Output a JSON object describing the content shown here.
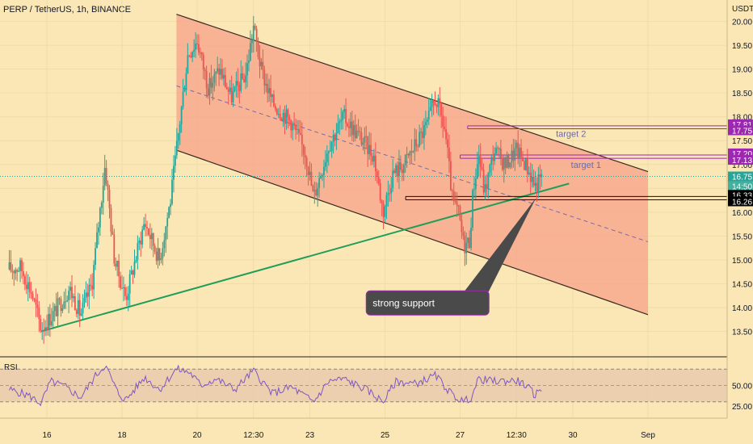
{
  "header": {
    "title": "PERP / TetherUS, 1h, BINANCE"
  },
  "chart_data": {
    "type": "candlestick",
    "symbol": "PERP / TetherUS",
    "interval": "1h",
    "exchange": "BINANCE",
    "currency_label": "USDT",
    "ylim": [
      13.0,
      20.45
    ],
    "y_ticks": [
      13.5,
      14.0,
      14.5,
      15.0,
      15.5,
      16.0,
      16.5,
      17.0,
      17.5,
      18.0,
      18.5,
      19.0,
      19.5,
      20.0
    ],
    "y_tick_labels": [
      "13.50",
      "14.00",
      "14.50",
      "15.00",
      "15.50",
      "16.00",
      "16.50",
      "17.00",
      "17.50",
      "18.00",
      "18.50",
      "19.00",
      "19.50",
      "20.00"
    ],
    "x_ticks": [
      {
        "label": "16",
        "t": 1.0
      },
      {
        "label": "18",
        "t": 3.0
      },
      {
        "label": "20",
        "t": 5.0
      },
      {
        "label": "12:30",
        "t": 6.5
      },
      {
        "label": "23",
        "t": 8.0
      },
      {
        "label": "25",
        "t": 10.0
      },
      {
        "label": "27",
        "t": 12.0
      },
      {
        "label": "12:30",
        "t": 13.5
      },
      {
        "label": "30",
        "t": 15.0
      },
      {
        "label": "Sep",
        "t": 17.0
      }
    ],
    "series": [
      {
        "name": "PERP/USDT",
        "key_points": [
          {
            "t": 0.0,
            "v": 14.8
          },
          {
            "t": 0.3,
            "v": 14.85
          },
          {
            "t": 0.6,
            "v": 14.3
          },
          {
            "t": 0.85,
            "v": 13.55
          },
          {
            "t": 1.2,
            "v": 13.9
          },
          {
            "t": 1.6,
            "v": 14.4
          },
          {
            "t": 1.9,
            "v": 13.85
          },
          {
            "t": 2.2,
            "v": 14.5
          },
          {
            "t": 2.55,
            "v": 17.0
          },
          {
            "t": 2.8,
            "v": 15.0
          },
          {
            "t": 3.1,
            "v": 14.2
          },
          {
            "t": 3.6,
            "v": 15.8
          },
          {
            "t": 4.0,
            "v": 15.0
          },
          {
            "t": 4.3,
            "v": 16.3
          },
          {
            "t": 4.45,
            "v": 17.3
          },
          {
            "t": 4.75,
            "v": 19.3
          },
          {
            "t": 5.0,
            "v": 19.6
          },
          {
            "t": 5.3,
            "v": 18.6
          },
          {
            "t": 5.6,
            "v": 19.0
          },
          {
            "t": 5.9,
            "v": 18.4
          },
          {
            "t": 6.3,
            "v": 18.9
          },
          {
            "t": 6.5,
            "v": 19.9
          },
          {
            "t": 6.7,
            "v": 19.0
          },
          {
            "t": 7.0,
            "v": 18.3
          },
          {
            "t": 7.5,
            "v": 17.9
          },
          {
            "t": 7.9,
            "v": 17.2
          },
          {
            "t": 8.1,
            "v": 16.3
          },
          {
            "t": 8.5,
            "v": 17.4
          },
          {
            "t": 8.9,
            "v": 18.0
          },
          {
            "t": 9.3,
            "v": 17.6
          },
          {
            "t": 9.7,
            "v": 17.2
          },
          {
            "t": 9.95,
            "v": 16.0
          },
          {
            "t": 10.2,
            "v": 16.8
          },
          {
            "t": 10.5,
            "v": 17.0
          },
          {
            "t": 10.8,
            "v": 17.4
          },
          {
            "t": 11.1,
            "v": 17.8
          },
          {
            "t": 11.35,
            "v": 18.4
          },
          {
            "t": 11.6,
            "v": 17.7
          },
          {
            "t": 11.8,
            "v": 16.2
          },
          {
            "t": 11.95,
            "v": 16.0
          },
          {
            "t": 12.1,
            "v": 15.3
          },
          {
            "t": 12.25,
            "v": 15.4
          },
          {
            "t": 12.35,
            "v": 16.5
          },
          {
            "t": 12.5,
            "v": 17.2
          },
          {
            "t": 12.65,
            "v": 16.4
          },
          {
            "t": 12.9,
            "v": 17.3
          },
          {
            "t": 13.2,
            "v": 17.0
          },
          {
            "t": 13.5,
            "v": 17.3
          },
          {
            "t": 13.75,
            "v": 17.0
          },
          {
            "t": 14.0,
            "v": 16.55
          },
          {
            "t": 14.2,
            "v": 16.75
          }
        ]
      }
    ],
    "last_price": 16.75,
    "countdown": "14:50",
    "price_labels": [
      {
        "text": "17.81",
        "value": 17.81,
        "color": "#9c27b0"
      },
      {
        "text": "17.75",
        "value": 17.75,
        "color": "#9c27b0"
      },
      {
        "text": "17.20",
        "value": 17.2,
        "color": "#9c27b0"
      },
      {
        "text": "17.13",
        "value": 17.13,
        "color": "#9c27b0"
      },
      {
        "text": "16.75",
        "value": 16.75,
        "color": "#26a69a"
      },
      {
        "text": "16.33",
        "value": 16.33,
        "color": "#000000"
      },
      {
        "text": "16.26",
        "value": 16.26,
        "color": "#000000"
      }
    ],
    "channel": {
      "upper": [
        {
          "t": 4.45,
          "v": 20.15
        },
        {
          "t": 17.0,
          "v": 16.85
        }
      ],
      "lower": [
        {
          "t": 4.45,
          "v": 17.3
        },
        {
          "t": 17.0,
          "v": 13.85
        }
      ],
      "mid": [
        {
          "t": 4.45,
          "v": 18.65
        },
        {
          "t": 17.0,
          "v": 15.38
        }
      ]
    },
    "trendline": [
      {
        "t": 0.85,
        "v": 13.5
      },
      {
        "t": 14.9,
        "v": 16.6
      }
    ],
    "levels": [
      {
        "name": "target 2",
        "label": "target 2",
        "from_t": 12.2,
        "value": 17.75,
        "value2": 17.81
      },
      {
        "name": "target 1",
        "label": "target 1",
        "from_t": 12.0,
        "value": 17.13,
        "value2": 17.2
      },
      {
        "name": "support",
        "label": "",
        "from_t": 10.55,
        "value": 16.33,
        "value2": 16.26
      }
    ],
    "annotation": {
      "text": "strong support",
      "anchor": {
        "t": 14.02,
        "v": 16.3
      },
      "box": {
        "t": 9.5,
        "v": 14.35
      }
    },
    "colors": {
      "up": "#26a69a",
      "down": "#ef5350",
      "channel_fill": "#f7a28a",
      "trendline": "#1f9e5a",
      "level": "#9c27b0",
      "rsi_line": "#7e57c2"
    },
    "rsi": {
      "label": "RSI",
      "ylim": [
        10,
        85
      ],
      "y_ticks": [
        25,
        50
      ],
      "y_tick_labels": [
        "25.00",
        "50.00"
      ],
      "band": [
        30,
        70
      ],
      "key_points": [
        {
          "t": 0.0,
          "v": 45
        },
        {
          "t": 0.5,
          "v": 38
        },
        {
          "t": 0.85,
          "v": 28
        },
        {
          "t": 1.1,
          "v": 55
        },
        {
          "t": 1.5,
          "v": 48
        },
        {
          "t": 1.9,
          "v": 35
        },
        {
          "t": 2.3,
          "v": 62
        },
        {
          "t": 2.55,
          "v": 75
        },
        {
          "t": 2.9,
          "v": 40
        },
        {
          "t": 3.1,
          "v": 32
        },
        {
          "t": 3.6,
          "v": 60
        },
        {
          "t": 4.0,
          "v": 45
        },
        {
          "t": 4.45,
          "v": 70
        },
        {
          "t": 4.8,
          "v": 66
        },
        {
          "t": 5.1,
          "v": 50
        },
        {
          "t": 5.5,
          "v": 58
        },
        {
          "t": 6.0,
          "v": 45
        },
        {
          "t": 6.5,
          "v": 68
        },
        {
          "t": 7.0,
          "v": 40
        },
        {
          "t": 7.5,
          "v": 48
        },
        {
          "t": 8.1,
          "v": 30
        },
        {
          "t": 8.5,
          "v": 55
        },
        {
          "t": 8.9,
          "v": 58
        },
        {
          "t": 9.5,
          "v": 45
        },
        {
          "t": 9.95,
          "v": 30
        },
        {
          "t": 10.3,
          "v": 55
        },
        {
          "t": 10.8,
          "v": 52
        },
        {
          "t": 11.35,
          "v": 62
        },
        {
          "t": 11.8,
          "v": 38
        },
        {
          "t": 12.1,
          "v": 30
        },
        {
          "t": 12.3,
          "v": 36
        },
        {
          "t": 12.5,
          "v": 58
        },
        {
          "t": 12.9,
          "v": 55
        },
        {
          "t": 13.5,
          "v": 56
        },
        {
          "t": 13.75,
          "v": 50
        },
        {
          "t": 14.0,
          "v": 38
        },
        {
          "t": 14.2,
          "v": 48
        }
      ]
    }
  }
}
